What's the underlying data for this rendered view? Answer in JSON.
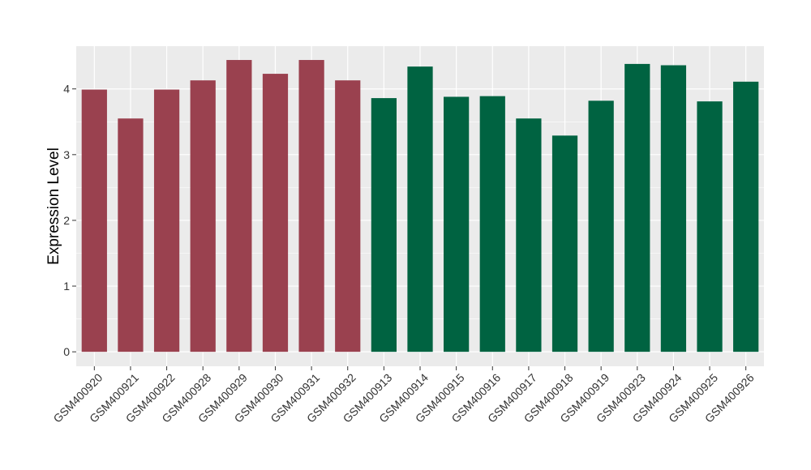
{
  "chart_data": {
    "type": "bar",
    "title": "",
    "xlabel": "",
    "ylabel": "Expression Level",
    "ylim": [
      -0.22,
      4.65
    ],
    "yticks": [
      0,
      1,
      2,
      3,
      4
    ],
    "grid": true,
    "legend": "none",
    "panel_background": "#ebebeb",
    "categories": [
      "GSM400920",
      "GSM400921",
      "GSM400922",
      "GSM400928",
      "GSM400929",
      "GSM400930",
      "GSM400931",
      "GSM400932",
      "GSM400913",
      "GSM400914",
      "GSM400915",
      "GSM400916",
      "GSM400917",
      "GSM400918",
      "GSM400919",
      "GSM400923",
      "GSM400924",
      "GSM400925",
      "GSM400926"
    ],
    "values": [
      3.99,
      3.55,
      3.99,
      4.13,
      4.44,
      4.23,
      4.44,
      4.13,
      3.86,
      4.34,
      3.88,
      3.89,
      3.55,
      3.29,
      3.82,
      4.38,
      4.36,
      3.81,
      4.11
    ],
    "group_sizes": [
      8,
      11
    ],
    "group_colors": [
      "#9a414f",
      "#006341"
    ]
  }
}
